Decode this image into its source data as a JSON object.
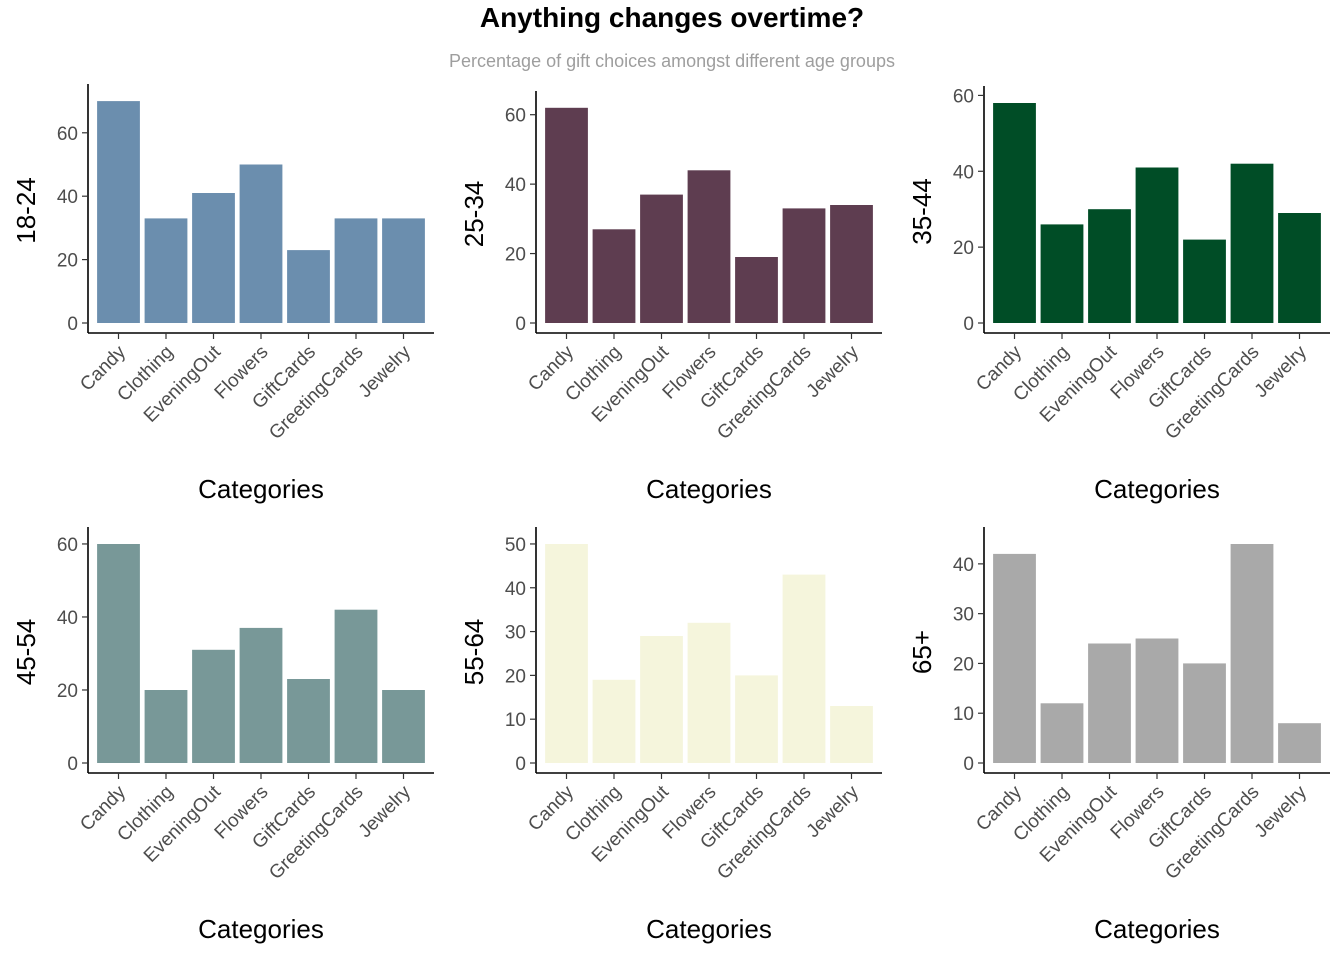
{
  "title": "Anything changes overtime?",
  "subtitle": "Percentage of gift choices amongst different age groups",
  "chart_data": [
    {
      "type": "bar",
      "ylabel": "18-24",
      "xlabel": "Categories",
      "color": "#6b8eae",
      "categories": [
        "Candy",
        "Clothing",
        "EveningOut",
        "Flowers",
        "GiftCards",
        "GreetingCards",
        "Jewelry"
      ],
      "values": [
        70,
        33,
        41,
        50,
        23,
        33,
        33
      ],
      "yticks": [
        0,
        20,
        40,
        60
      ],
      "ylim": [
        0,
        73.5
      ]
    },
    {
      "type": "bar",
      "ylabel": "25-34",
      "xlabel": "Categories",
      "color": "#5e3d50",
      "categories": [
        "Candy",
        "Clothing",
        "EveningOut",
        "Flowers",
        "GiftCards",
        "GreetingCards",
        "Jewelry"
      ],
      "values": [
        62,
        27,
        37,
        44,
        19,
        33,
        34
      ],
      "yticks": [
        0,
        20,
        40,
        60
      ],
      "ylim": [
        0,
        65.1
      ]
    },
    {
      "type": "bar",
      "ylabel": "35-44",
      "xlabel": "Categories",
      "color": "#004d26",
      "categories": [
        "Candy",
        "Clothing",
        "EveningOut",
        "Flowers",
        "GiftCards",
        "GreetingCards",
        "Jewelry"
      ],
      "values": [
        58,
        26,
        30,
        41,
        22,
        42,
        29
      ],
      "yticks": [
        0,
        20,
        40,
        60
      ],
      "ylim": [
        0,
        60.9
      ]
    },
    {
      "type": "bar",
      "ylabel": "45-54",
      "xlabel": "Categories",
      "color": "#789898",
      "categories": [
        "Candy",
        "Clothing",
        "EveningOut",
        "Flowers",
        "GiftCards",
        "GreetingCards",
        "Jewelry"
      ],
      "values": [
        60,
        20,
        31,
        37,
        23,
        42,
        20
      ],
      "yticks": [
        0,
        20,
        40,
        60
      ],
      "ylim": [
        0,
        63
      ]
    },
    {
      "type": "bar",
      "ylabel": "55-64",
      "xlabel": "Categories",
      "color": "#f5f5dc",
      "categories": [
        "Candy",
        "Clothing",
        "EveningOut",
        "Flowers",
        "GiftCards",
        "GreetingCards",
        "Jewelry"
      ],
      "values": [
        50,
        19,
        29,
        32,
        20,
        43,
        13
      ],
      "yticks": [
        0,
        10,
        20,
        30,
        40,
        50
      ],
      "ylim": [
        0,
        52.5
      ]
    },
    {
      "type": "bar",
      "ylabel": "65+",
      "xlabel": "Categories",
      "color": "#a9a9a9",
      "categories": [
        "Candy",
        "Clothing",
        "EveningOut",
        "Flowers",
        "GiftCards",
        "GreetingCards",
        "Jewelry"
      ],
      "values": [
        42,
        12,
        24,
        25,
        20,
        44,
        8
      ],
      "yticks": [
        0,
        10,
        20,
        30,
        40
      ],
      "ylim": [
        0,
        46.2
      ]
    }
  ]
}
